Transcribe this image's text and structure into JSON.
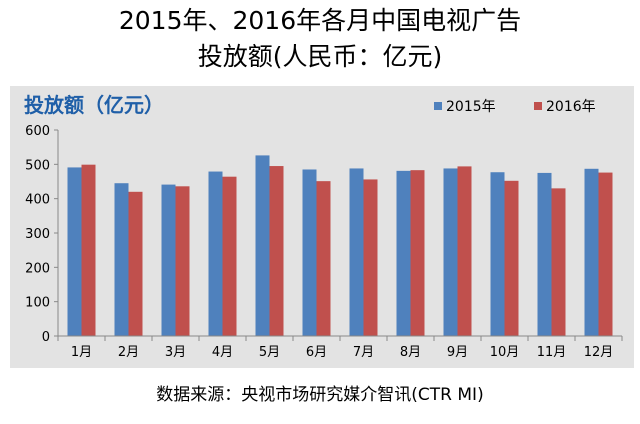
{
  "header": {
    "title_line1": "2015年、2016年各月中国电视广告",
    "title_line2": "投放额(人民币：亿元)"
  },
  "footer": {
    "source": "数据来源：央视市场研究媒介智讯(CTR MI)"
  },
  "chart_data": {
    "type": "bar",
    "title": "投放额（亿元）",
    "categories": [
      "1月",
      "2月",
      "3月",
      "4月",
      "5月",
      "6月",
      "7月",
      "8月",
      "9月",
      "10月",
      "11月",
      "12月"
    ],
    "series": [
      {
        "name": "2015年",
        "color": "#4f81bd",
        "values": [
          491,
          445,
          441,
          479,
          526,
          485,
          488,
          481,
          488,
          477,
          475,
          487
        ]
      },
      {
        "name": "2016年",
        "color": "#c0504d",
        "values": [
          499,
          420,
          436,
          464,
          495,
          451,
          456,
          483,
          494,
          452,
          430,
          476
        ]
      }
    ],
    "yticks": [
      0,
      100,
      200,
      300,
      400,
      500,
      600
    ],
    "ylim": [
      0,
      600
    ],
    "grid": false,
    "legend_position": "top-right",
    "title_color": "#1f5fa8"
  }
}
